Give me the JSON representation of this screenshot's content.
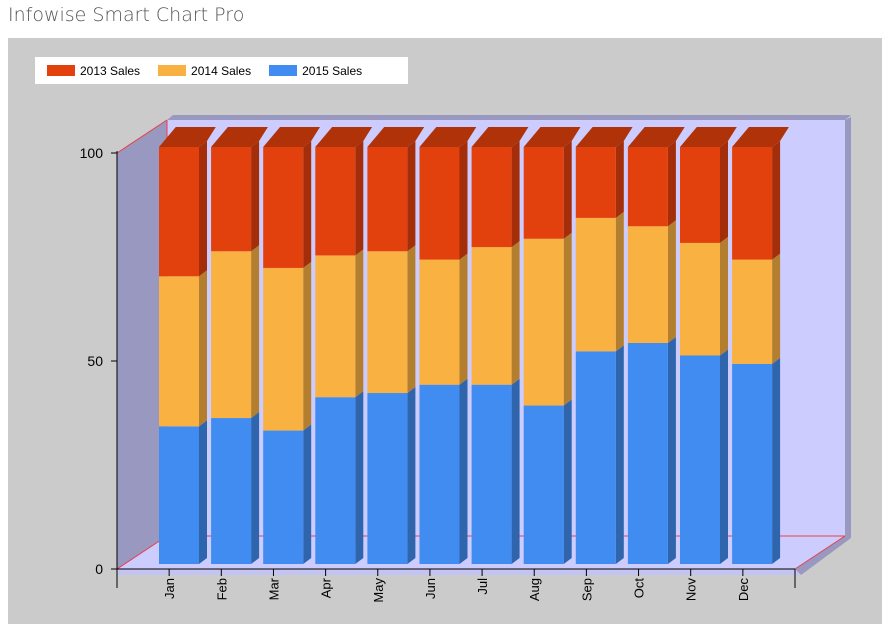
{
  "app": {
    "title": "Infowise Smart Chart Pro"
  },
  "colors": {
    "panel_bg": "#cbcbcb",
    "plot_back": "#ccccff",
    "plot_left": "#9898c0",
    "axis_line": "#e8414b",
    "s2013": "#e2400c",
    "s2014": "#f9b141",
    "s2015": "#418cf0"
  },
  "chart_data": {
    "type": "bar",
    "stacked": true,
    "percent_stacked": true,
    "style": "3d",
    "categories": [
      "Jan",
      "Feb",
      "Mar",
      "Apr",
      "May",
      "Jun",
      "Jul",
      "Aug",
      "Sep",
      "Oct",
      "Nov",
      "Dec"
    ],
    "series": [
      {
        "name": "2015 Sales",
        "color": "#418cf0",
        "values": [
          33,
          35,
          32,
          40,
          41,
          43,
          43,
          38,
          51,
          53,
          50,
          48
        ]
      },
      {
        "name": "2014 Sales",
        "color": "#f9b141",
        "values": [
          36,
          40,
          39,
          34,
          34,
          30,
          33,
          40,
          32,
          28,
          27,
          25
        ]
      },
      {
        "name": "2013 Sales",
        "color": "#e2400c",
        "values": [
          31,
          25,
          29,
          26,
          25,
          27,
          24,
          22,
          17,
          19,
          23,
          27
        ]
      }
    ],
    "legend_order": [
      "2013 Sales",
      "2014 Sales",
      "2015 Sales"
    ],
    "yticks": [
      0,
      50,
      100
    ],
    "ylim": [
      0,
      100
    ],
    "legend_position": "top-left",
    "grid": false
  }
}
